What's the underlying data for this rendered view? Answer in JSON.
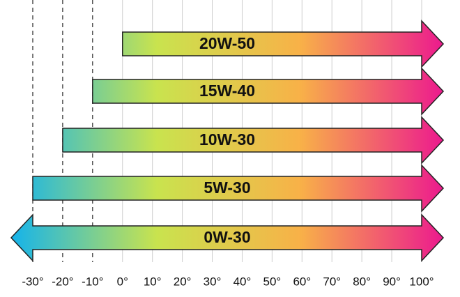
{
  "chart_data": {
    "type": "range-arrow",
    "categories": [
      "20W-50",
      "15W-40",
      "10W-30",
      "5W-30",
      "0W-30"
    ],
    "starts": [
      0,
      -10,
      -20,
      -30,
      -30
    ],
    "ends": [
      100,
      100,
      100,
      100,
      100
    ],
    "open_start": [
      false,
      false,
      false,
      false,
      true
    ],
    "open_end": [
      true,
      true,
      true,
      true,
      true
    ],
    "colors": [
      "#18b4e8",
      "#c9e34e",
      "#f8b148",
      "#ec1a8e"
    ],
    "xlim": [
      -30,
      100
    ],
    "xticks": [
      {
        "value": -30,
        "label": "-30°"
      },
      {
        "value": -20,
        "label": "-20°"
      },
      {
        "value": -10,
        "label": "-10°"
      },
      {
        "value": 0,
        "label": "0°"
      },
      {
        "value": 10,
        "label": "10°"
      },
      {
        "value": 20,
        "label": "20°"
      },
      {
        "value": 30,
        "label": "30°"
      },
      {
        "value": 40,
        "label": "40°"
      },
      {
        "value": 50,
        "label": "50°"
      },
      {
        "value": 60,
        "label": "60°"
      },
      {
        "value": 70,
        "label": "70°"
      },
      {
        "value": 80,
        "label": "80°"
      },
      {
        "value": 90,
        "label": "90°"
      },
      {
        "value": 100,
        "label": "100°"
      }
    ],
    "grid": true
  }
}
